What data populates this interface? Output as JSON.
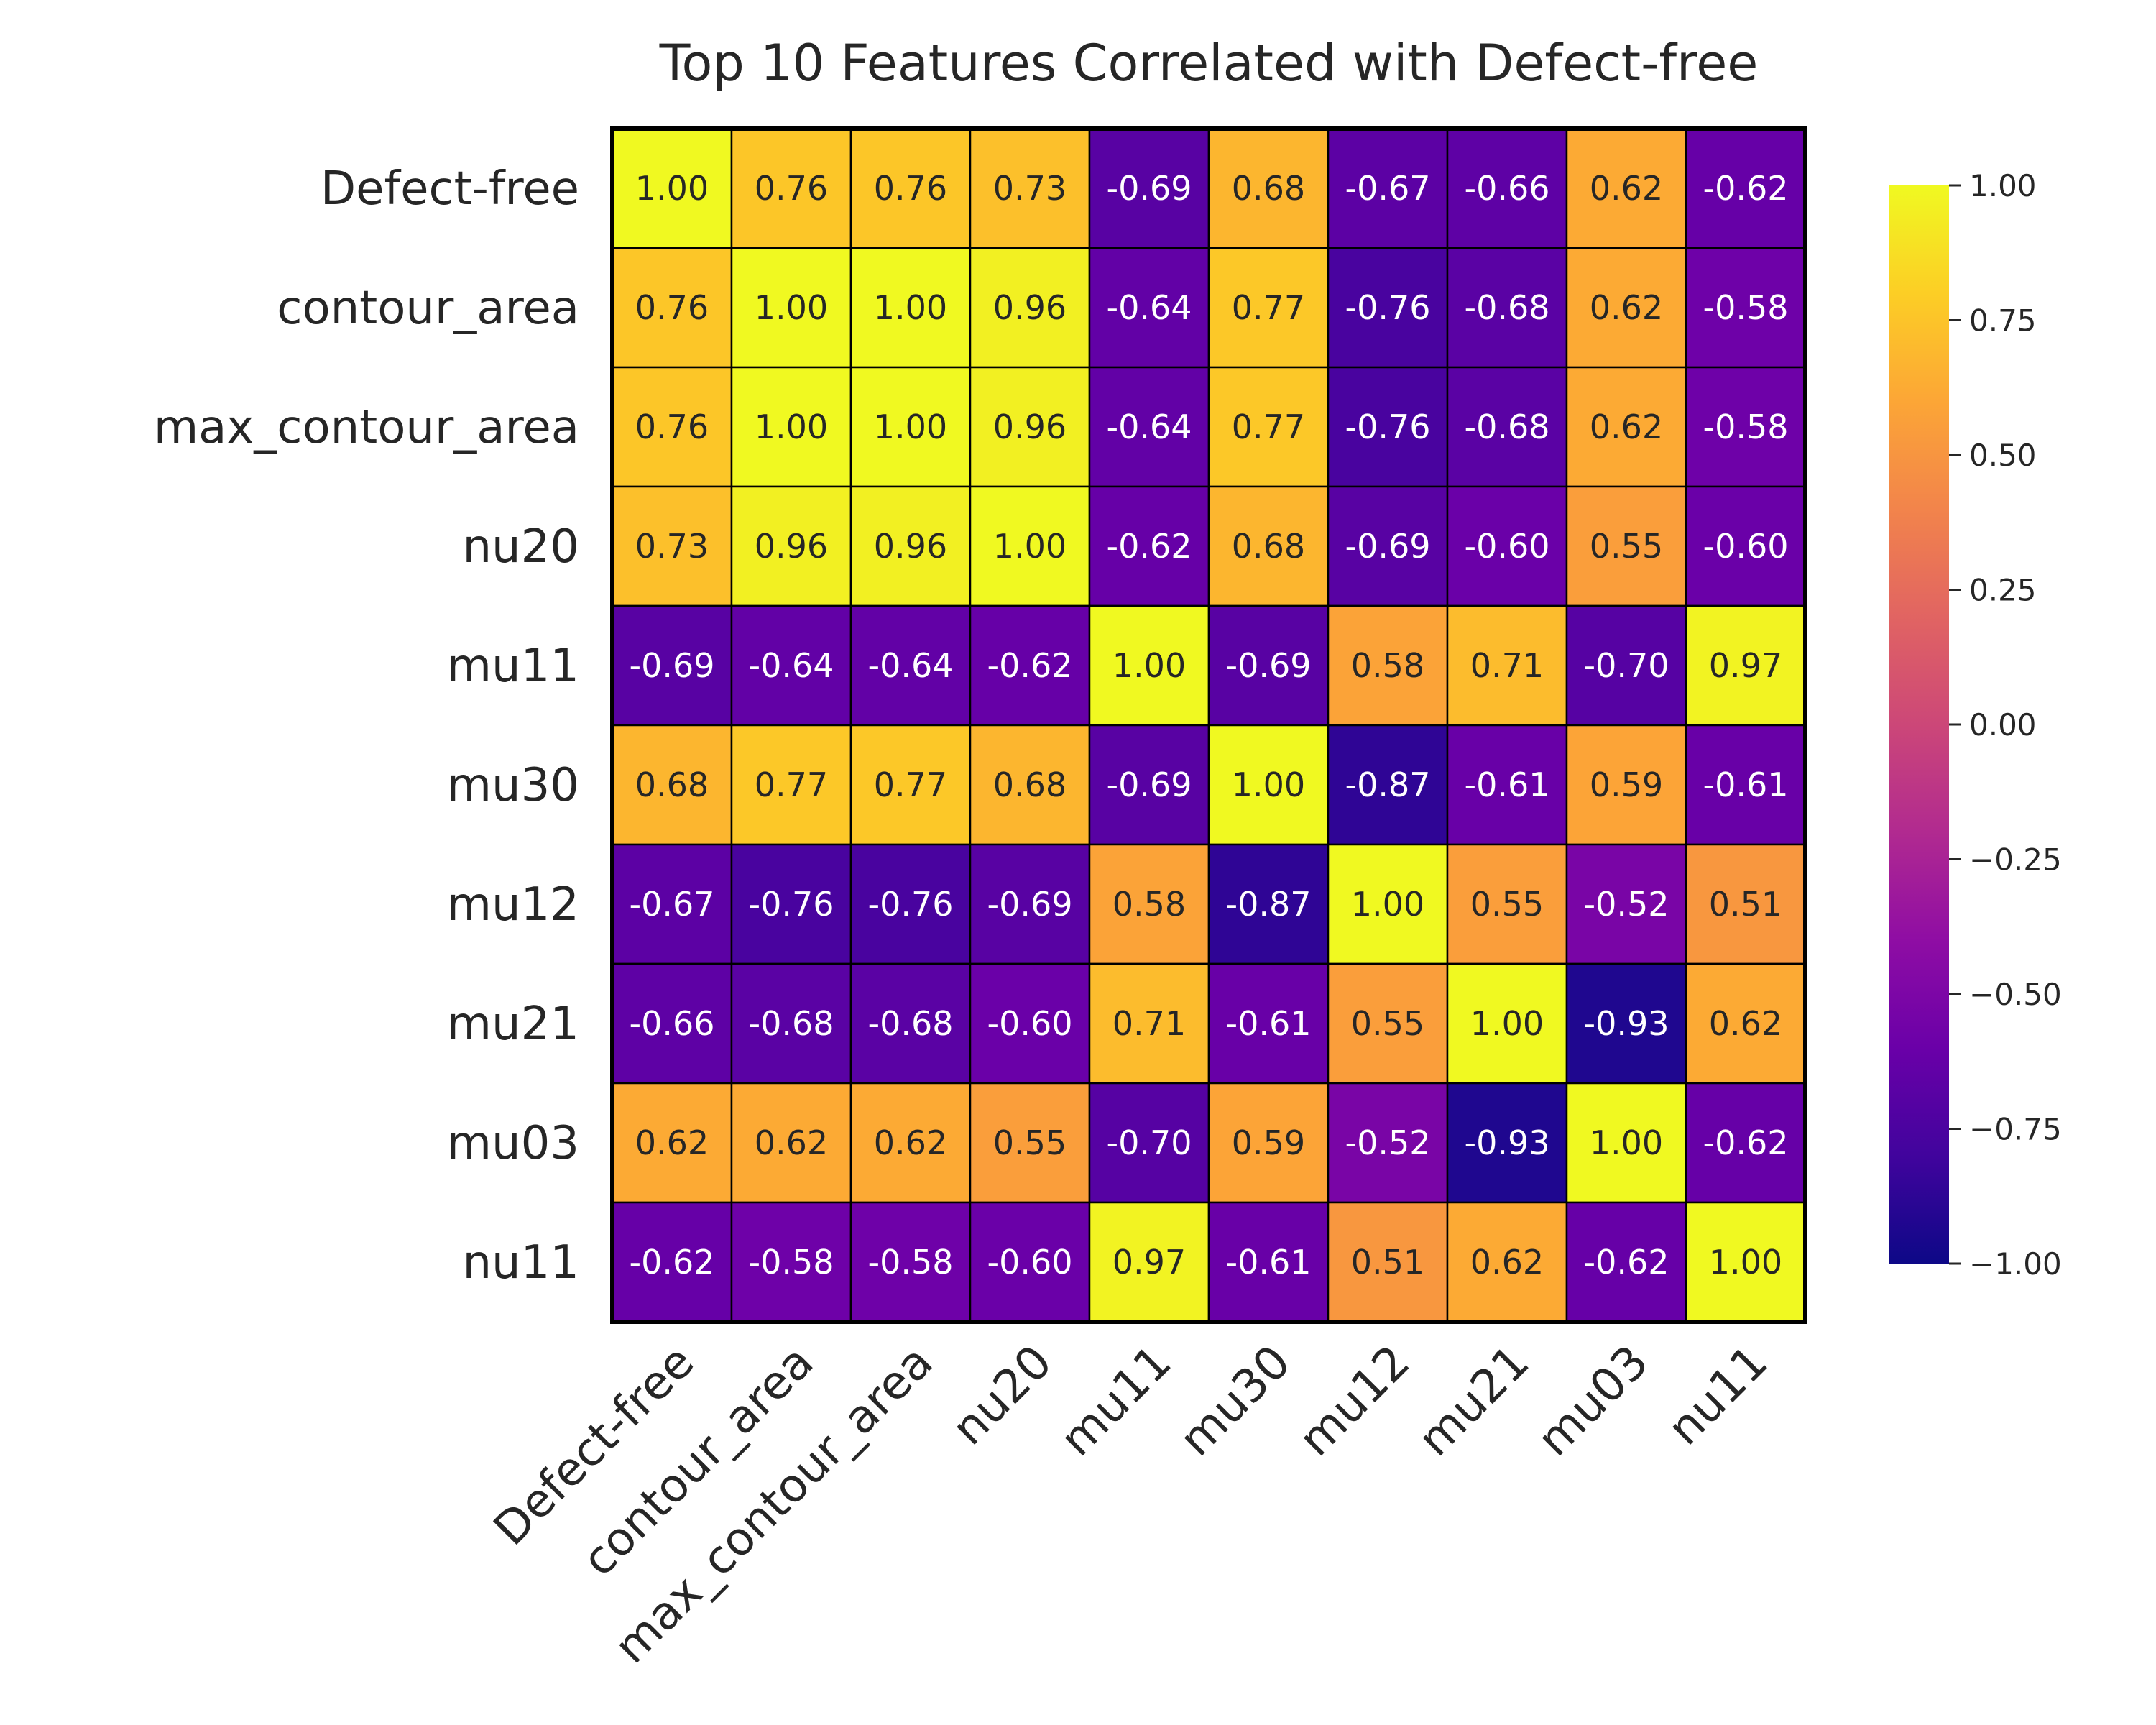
{
  "chart_data": {
    "type": "heatmap",
    "title": "Top 10 Features Correlated with Defect-free",
    "labels": [
      "Defect-free",
      "contour_area",
      "max_contour_area",
      "nu20",
      "mu11",
      "mu30",
      "mu12",
      "mu21",
      "mu03",
      "nu11"
    ],
    "matrix": [
      [
        1.0,
        0.76,
        0.76,
        0.73,
        -0.69,
        0.68,
        -0.67,
        -0.66,
        0.62,
        -0.62
      ],
      [
        0.76,
        1.0,
        1.0,
        0.96,
        -0.64,
        0.77,
        -0.76,
        -0.68,
        0.62,
        -0.58
      ],
      [
        0.76,
        1.0,
        1.0,
        0.96,
        -0.64,
        0.77,
        -0.76,
        -0.68,
        0.62,
        -0.58
      ],
      [
        0.73,
        0.96,
        0.96,
        1.0,
        -0.62,
        0.68,
        -0.69,
        -0.6,
        0.55,
        -0.6
      ],
      [
        -0.69,
        -0.64,
        -0.64,
        -0.62,
        1.0,
        -0.69,
        0.58,
        0.71,
        -0.7,
        0.97
      ],
      [
        0.68,
        0.77,
        0.77,
        0.68,
        -0.69,
        1.0,
        -0.87,
        -0.61,
        0.59,
        -0.61
      ],
      [
        -0.67,
        -0.76,
        -0.76,
        -0.69,
        0.58,
        -0.87,
        1.0,
        0.55,
        -0.52,
        0.51
      ],
      [
        -0.66,
        -0.68,
        -0.68,
        -0.6,
        0.71,
        -0.61,
        0.55,
        1.0,
        -0.93,
        0.62
      ],
      [
        0.62,
        0.62,
        0.62,
        0.55,
        -0.7,
        0.59,
        -0.52,
        -0.93,
        1.0,
        -0.62
      ],
      [
        -0.62,
        -0.58,
        -0.58,
        -0.6,
        0.97,
        -0.61,
        0.51,
        0.62,
        -0.62,
        1.0
      ]
    ],
    "vmin": -1.0,
    "vmax": 1.0,
    "colormap": "plasma",
    "annotation_format": "0.00",
    "colorbar_ticks": [
      "1.00",
      "0.75",
      "0.50",
      "0.25",
      "0.00",
      "−0.25",
      "−0.50",
      "−0.75",
      "−1.00"
    ],
    "colorbar_tick_values": [
      1.0,
      0.75,
      0.5,
      0.25,
      0.0,
      -0.25,
      -0.5,
      -0.75,
      -1.0
    ],
    "legend_placement": "right",
    "grid": false
  }
}
